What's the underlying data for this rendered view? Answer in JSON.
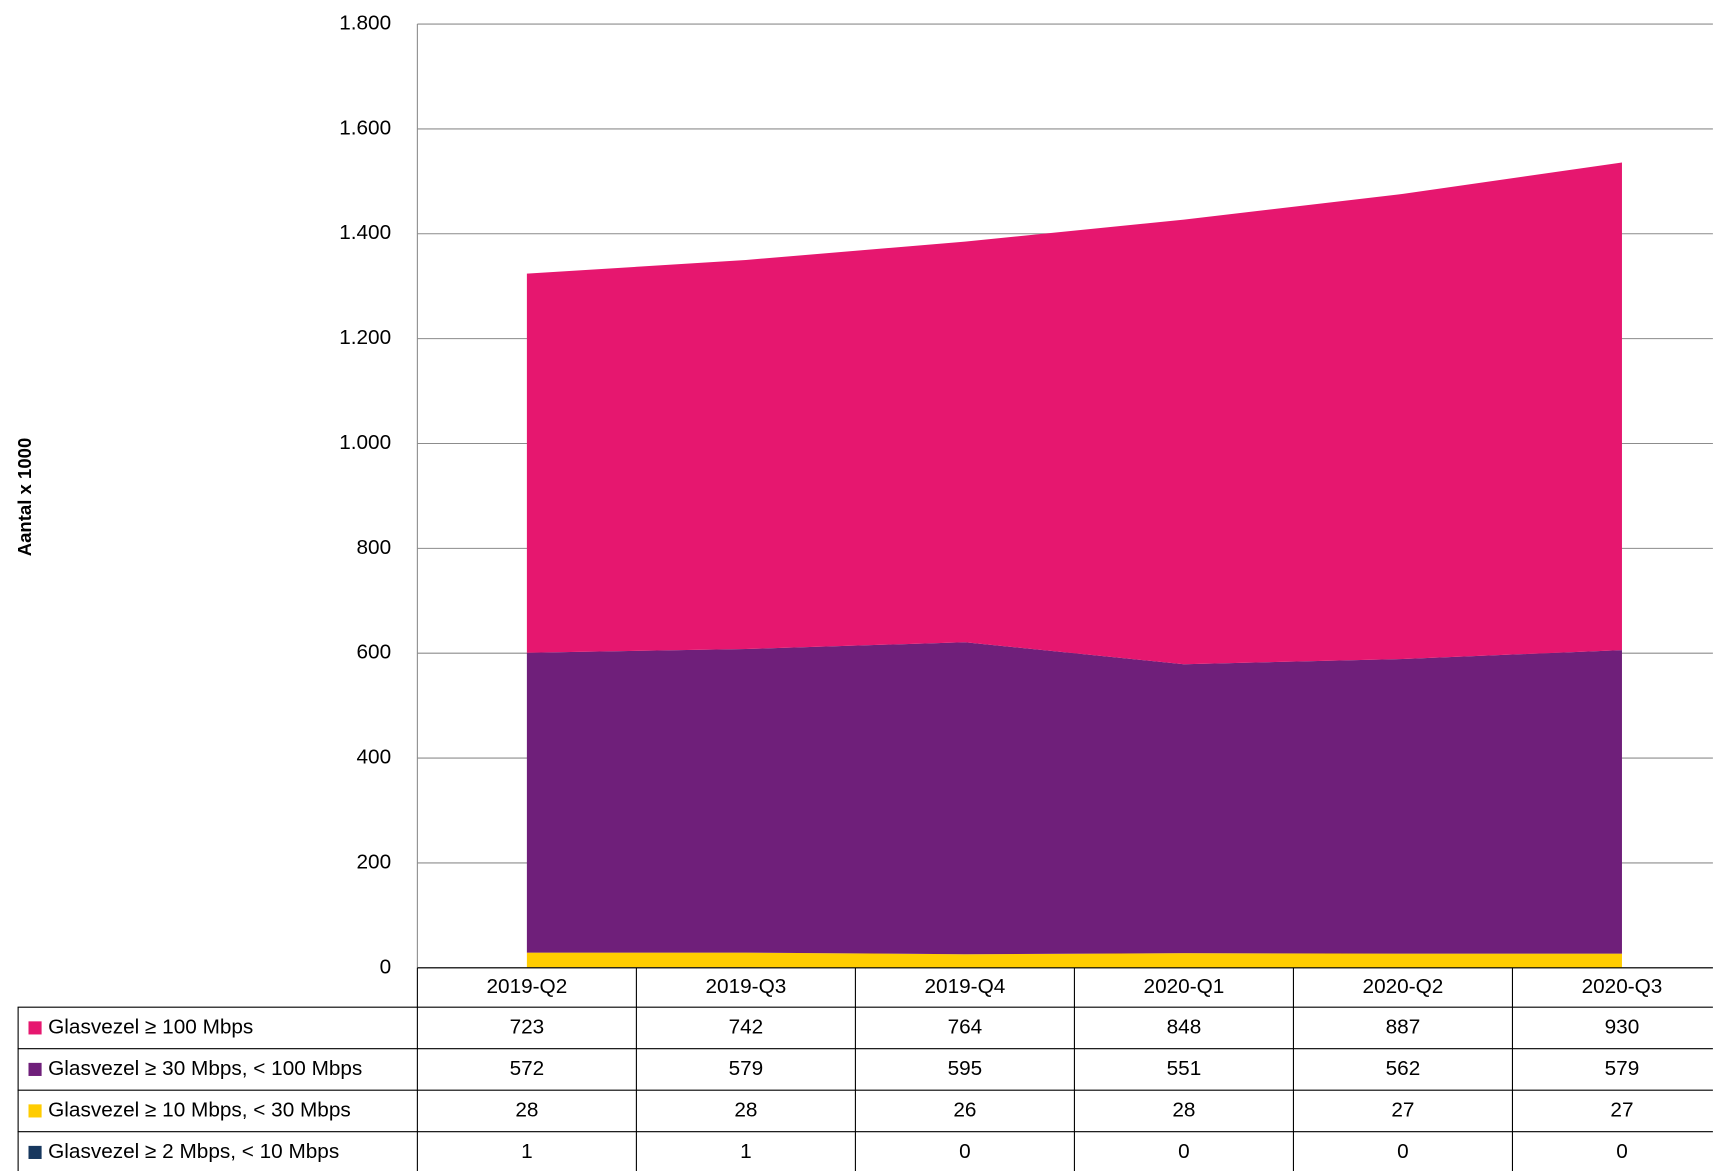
{
  "chart_data": {
    "type": "stacked_area",
    "y_label": "Aantal x 1000",
    "categories": [
      "2019-Q2",
      "2019-Q3",
      "2019-Q4",
      "2020-Q1",
      "2020-Q2",
      "2020-Q3"
    ],
    "series": [
      {
        "name": "Glasvezel ≥ 100 Mbps",
        "color": "#e6176f",
        "values": [
          723,
          742,
          764,
          848,
          887,
          930
        ]
      },
      {
        "name": "Glasvezel ≥ 30 Mbps, < 100 Mbps",
        "color": "#6f1f7a",
        "values": [
          572,
          579,
          595,
          551,
          562,
          579
        ]
      },
      {
        "name": "Glasvezel ≥ 10 Mbps, < 30 Mbps",
        "color": "#ffcc00",
        "values": [
          28,
          28,
          26,
          28,
          27,
          27
        ]
      },
      {
        "name": "Glasvezel ≥ 2 Mbps, < 10 Mbps",
        "color": "#17375e",
        "values": [
          1,
          1,
          0,
          0,
          0,
          0
        ]
      }
    ],
    "ylim": [
      0,
      1800
    ],
    "yticks": [
      0,
      200,
      400,
      600,
      800,
      {
        "value": 1000,
        "label": "1.000"
      },
      {
        "value": 1200,
        "label": "1.200"
      },
      {
        "value": 1400,
        "label": "1.400"
      },
      {
        "value": 1600,
        "label": "1.600"
      },
      {
        "value": 1800,
        "label": "1.800"
      }
    ],
    "grid": true
  }
}
